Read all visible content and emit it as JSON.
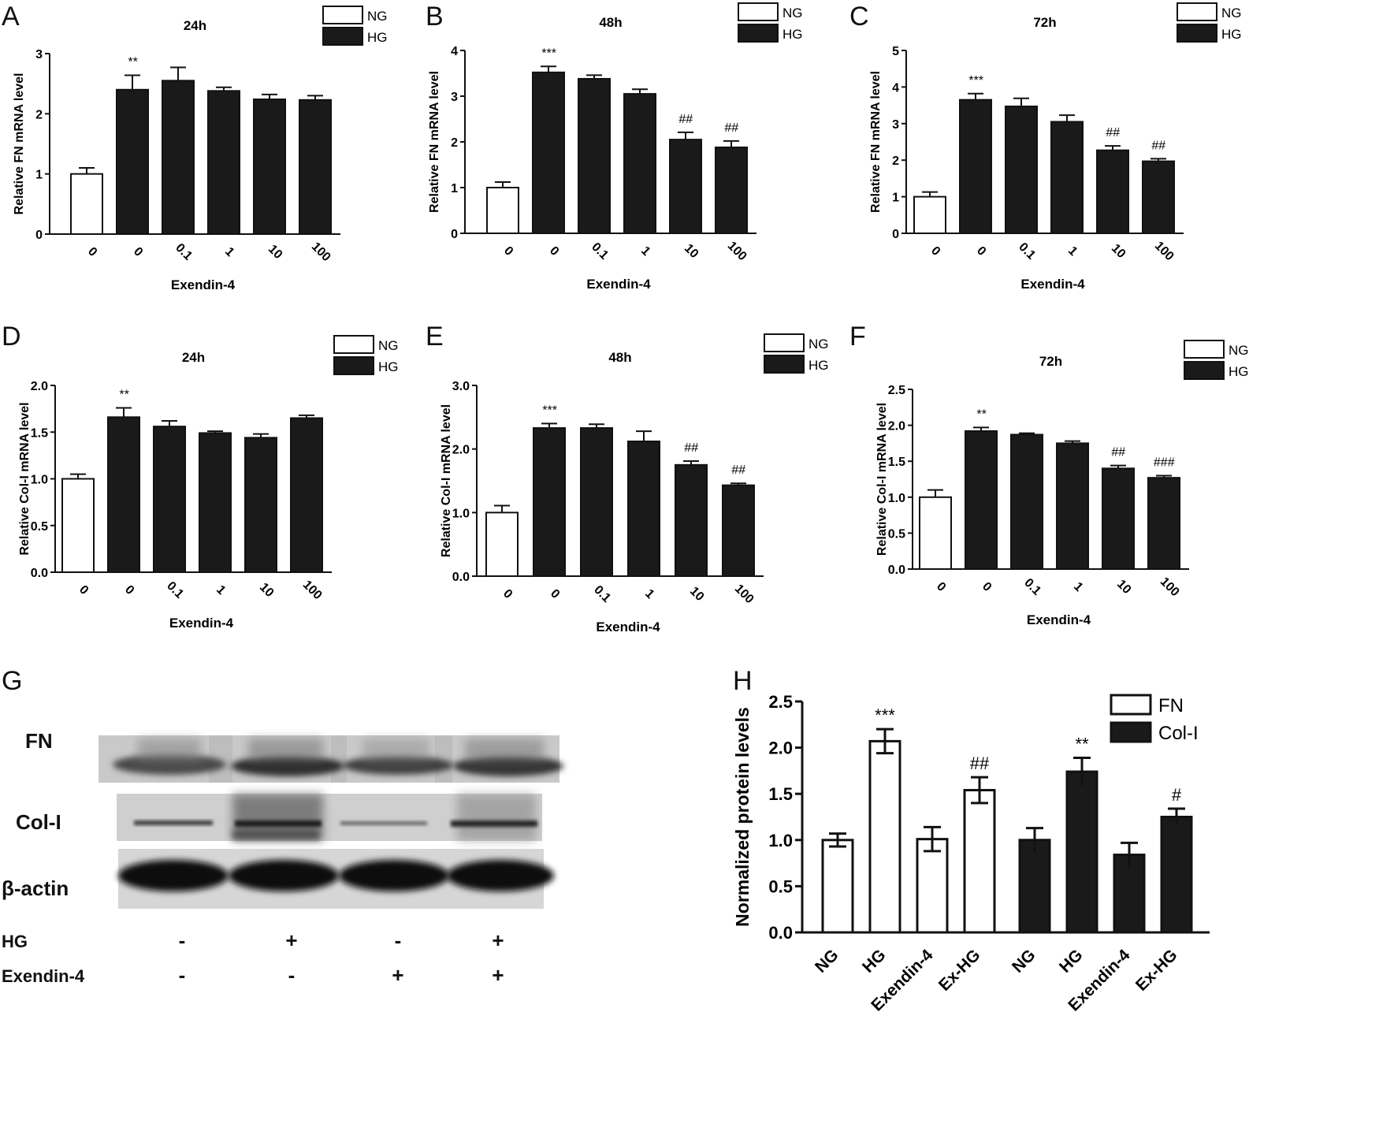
{
  "colors": {
    "NG": "#ffffff",
    "HG": "#1a1a1a",
    "FN": "#ffffff",
    "Col-I": "#1a1a1a",
    "stroke": "#111111"
  },
  "chart_data": [
    {
      "panel": "A",
      "type": "bar",
      "title": "24h",
      "xlabel": "Exendin-4",
      "ylabel": "Relative FN mRNA level",
      "ylim": [
        0,
        3
      ],
      "yticks": [
        "0",
        "1",
        "2",
        "3"
      ],
      "categories": [
        "0",
        "0",
        "0.1",
        "1",
        "10",
        "100"
      ],
      "groups": [
        "NG",
        "HG",
        "HG",
        "HG",
        "HG",
        "HG"
      ],
      "values": [
        1.0,
        2.4,
        2.55,
        2.38,
        2.24,
        2.23
      ],
      "errors": [
        0.1,
        0.24,
        0.22,
        0.06,
        0.08,
        0.07
      ],
      "annotations": [
        "",
        "**",
        "",
        "",
        "",
        ""
      ],
      "legend": [
        "NG",
        "HG"
      ]
    },
    {
      "panel": "B",
      "type": "bar",
      "title": "48h",
      "xlabel": "Exendin-4",
      "ylabel": "Relative FN mRNA level",
      "ylim": [
        0,
        4
      ],
      "yticks": [
        "0",
        "1",
        "2",
        "3",
        "4"
      ],
      "categories": [
        "0",
        "0",
        "0.1",
        "1",
        "10",
        "100"
      ],
      "groups": [
        "NG",
        "HG",
        "HG",
        "HG",
        "HG",
        "HG"
      ],
      "values": [
        1.0,
        3.52,
        3.38,
        3.05,
        2.05,
        1.88
      ],
      "errors": [
        0.12,
        0.13,
        0.08,
        0.1,
        0.16,
        0.14
      ],
      "annotations": [
        "",
        "***",
        "",
        "",
        "##",
        "##"
      ],
      "legend": [
        "NG",
        "HG"
      ]
    },
    {
      "panel": "C",
      "type": "bar",
      "title": "72h",
      "xlabel": "Exendin-4",
      "ylabel": "Relative FN mRNA level",
      "ylim": [
        0,
        5
      ],
      "yticks": [
        "0",
        "1",
        "2",
        "3",
        "4",
        "5"
      ],
      "categories": [
        "0",
        "0",
        "0.1",
        "1",
        "10",
        "100"
      ],
      "groups": [
        "NG",
        "HG",
        "HG",
        "HG",
        "HG",
        "HG"
      ],
      "values": [
        1.0,
        3.65,
        3.47,
        3.05,
        2.27,
        1.97
      ],
      "errors": [
        0.13,
        0.17,
        0.22,
        0.18,
        0.12,
        0.07
      ],
      "annotations": [
        "",
        "***",
        "",
        "",
        "##",
        "##"
      ],
      "legend": [
        "NG",
        "HG"
      ]
    },
    {
      "panel": "D",
      "type": "bar",
      "title": "24h",
      "xlabel": "Exendin-4",
      "ylabel": "Relative Col-I mRNA level",
      "ylim": [
        0,
        2.0
      ],
      "yticks": [
        "0.0",
        "0.5",
        "1.0",
        "1.5",
        "2.0"
      ],
      "categories": [
        "0",
        "0",
        "0.1",
        "1",
        "10",
        "100"
      ],
      "groups": [
        "NG",
        "HG",
        "HG",
        "HG",
        "HG",
        "HG"
      ],
      "values": [
        1.0,
        1.66,
        1.56,
        1.49,
        1.44,
        1.65
      ],
      "errors": [
        0.05,
        0.1,
        0.06,
        0.02,
        0.04,
        0.03
      ],
      "annotations": [
        "",
        "**",
        "",
        "",
        "",
        ""
      ],
      "legend": [
        "NG",
        "HG"
      ]
    },
    {
      "panel": "E",
      "type": "bar",
      "title": "48h",
      "xlabel": "Exendin-4",
      "ylabel": "Relative Col-I mRNA level",
      "ylim": [
        0,
        3.0
      ],
      "yticks": [
        "0.0",
        "1.0",
        "2.0",
        "3.0"
      ],
      "categories": [
        "0",
        "0",
        "0.1",
        "1",
        "10",
        "100"
      ],
      "groups": [
        "NG",
        "HG",
        "HG",
        "HG",
        "HG",
        "HG"
      ],
      "values": [
        1.0,
        2.33,
        2.33,
        2.12,
        1.75,
        1.43
      ],
      "errors": [
        0.11,
        0.07,
        0.06,
        0.16,
        0.06,
        0.03
      ],
      "annotations": [
        "",
        "***",
        "",
        "",
        "##",
        "##"
      ],
      "legend": [
        "NG",
        "HG"
      ]
    },
    {
      "panel": "F",
      "type": "bar",
      "title": "72h",
      "xlabel": "Exendin-4",
      "ylabel": "Relative Col-I mRNA level",
      "ylim": [
        0,
        2.5
      ],
      "yticks": [
        "0.0",
        "0.5",
        "1.0",
        "1.5",
        "2.0",
        "2.5"
      ],
      "categories": [
        "0",
        "0",
        "0.1",
        "1",
        "10",
        "100"
      ],
      "groups": [
        "NG",
        "HG",
        "HG",
        "HG",
        "HG",
        "HG"
      ],
      "values": [
        1.0,
        1.92,
        1.87,
        1.75,
        1.4,
        1.27
      ],
      "errors": [
        0.1,
        0.05,
        0.02,
        0.03,
        0.04,
        0.03
      ],
      "annotations": [
        "",
        "**",
        "",
        "",
        "##",
        "###"
      ],
      "legend": [
        "NG",
        "HG"
      ]
    },
    {
      "panel": "H",
      "type": "bar",
      "title": "",
      "xlabel": "",
      "ylabel": "Normalized protein levels",
      "ylim": [
        0,
        2.5
      ],
      "yticks": [
        "0.0",
        "0.5",
        "1.0",
        "1.5",
        "2.0",
        "2.5"
      ],
      "categories": [
        "NG",
        "HG",
        "Exendin-4",
        "Ex-HG"
      ],
      "series": [
        {
          "name": "FN",
          "values": [
            1.0,
            2.07,
            1.01,
            1.54
          ],
          "errors": [
            0.07,
            0.13,
            0.13,
            0.14
          ],
          "annotations": [
            "",
            "***",
            "",
            "##"
          ]
        },
        {
          "name": "Col-I",
          "values": [
            1.0,
            1.74,
            0.84,
            1.25
          ],
          "errors": [
            0.13,
            0.15,
            0.13,
            0.09
          ],
          "annotations": [
            "",
            "**",
            "",
            "#"
          ]
        }
      ],
      "legend": [
        "FN",
        "Col-I"
      ]
    }
  ],
  "blot": {
    "panel": "G",
    "rows": [
      "FN",
      "Col-I",
      "β-actin"
    ],
    "conditions": [
      {
        "label": "HG",
        "values": [
          "-",
          "+",
          "-",
          "+"
        ]
      },
      {
        "label": "Exendin-4",
        "values": [
          "-",
          "-",
          "+",
          "+"
        ]
      }
    ]
  }
}
